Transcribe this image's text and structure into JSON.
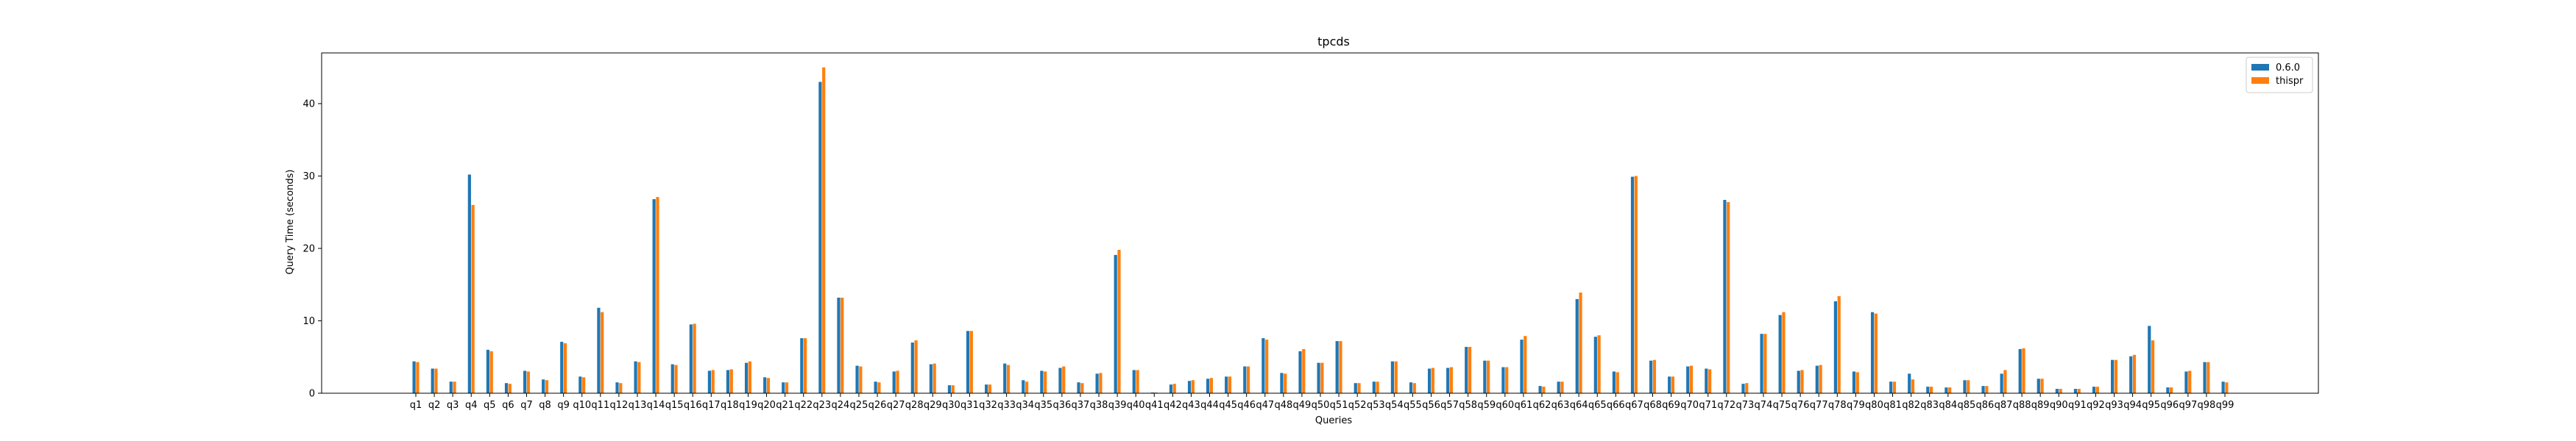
{
  "chart_data": {
    "type": "bar",
    "title": "tpcds",
    "xlabel": "Queries",
    "ylabel": "Query Time (seconds)",
    "ylim": [
      0,
      47
    ],
    "yticks": [
      0,
      10,
      20,
      30,
      40
    ],
    "grid": false,
    "legend_position": "top-right",
    "categories": [
      "q1",
      "q2",
      "q3",
      "q4",
      "q5",
      "q6",
      "q7",
      "q8",
      "q9",
      "q10",
      "q11",
      "q12",
      "q13",
      "q14",
      "q15",
      "q16",
      "q17",
      "q18",
      "q19",
      "q20",
      "q21",
      "q22",
      "q23",
      "q24",
      "q25",
      "q26",
      "q27",
      "q28",
      "q29",
      "q30",
      "q31",
      "q32",
      "q33",
      "q34",
      "q35",
      "q36",
      "q37",
      "q38",
      "q39",
      "q40",
      "q41",
      "q42",
      "q43",
      "q44",
      "q45",
      "q46",
      "q47",
      "q48",
      "q49",
      "q50",
      "q51",
      "q52",
      "q53",
      "q54",
      "q55",
      "q56",
      "q57",
      "q58",
      "q59",
      "q60",
      "q61",
      "q62",
      "q63",
      "q64",
      "q65",
      "q66",
      "q67",
      "q68",
      "q69",
      "q70",
      "q71",
      "q72",
      "q73",
      "q74",
      "q75",
      "q76",
      "q77",
      "q78",
      "q79",
      "q80",
      "q81",
      "q82",
      "q83",
      "q84",
      "q85",
      "q86",
      "q87",
      "q88",
      "q89",
      "q90",
      "q91",
      "q92",
      "q93",
      "q94",
      "q95",
      "q96",
      "q97",
      "q98",
      "q99"
    ],
    "series": [
      {
        "name": "0.6.0",
        "color": "#1f77b4",
        "values": [
          4.4,
          3.4,
          1.6,
          30.2,
          6.0,
          1.4,
          3.1,
          1.9,
          7.1,
          2.3,
          11.8,
          1.5,
          4.4,
          26.8,
          4.0,
          9.5,
          3.1,
          3.2,
          4.2,
          2.2,
          1.5,
          7.6,
          43.0,
          13.2,
          3.8,
          1.6,
          3.0,
          7.0,
          4.0,
          1.1,
          8.6,
          1.2,
          4.1,
          1.8,
          3.1,
          3.5,
          1.5,
          2.7,
          19.1,
          3.2,
          0.1,
          1.2,
          1.7,
          2.0,
          2.3,
          3.7,
          7.6,
          2.8,
          5.8,
          4.2,
          7.2,
          1.4,
          1.6,
          4.4,
          1.5,
          3.4,
          3.5,
          6.4,
          4.5,
          3.6,
          7.4,
          1.0,
          1.6,
          13.0,
          7.8,
          3.0,
          29.9,
          4.5,
          2.3,
          3.7,
          3.4,
          26.7,
          1.3,
          8.2,
          10.8,
          3.1,
          3.8,
          12.7,
          3.0,
          11.2,
          1.6,
          2.7,
          0.9,
          0.8,
          1.8,
          1.0,
          2.7,
          6.1,
          2.0,
          0.6,
          0.6,
          0.9,
          4.6,
          5.1,
          9.3,
          0.8,
          3.0,
          4.3,
          1.6
        ]
      },
      {
        "name": "thispr",
        "color": "#ff7f0e",
        "values": [
          4.3,
          3.4,
          1.6,
          26.0,
          5.8,
          1.3,
          3.0,
          1.8,
          6.9,
          2.2,
          11.2,
          1.4,
          4.3,
          27.1,
          3.9,
          9.6,
          3.2,
          3.3,
          4.4,
          2.1,
          1.5,
          7.6,
          45.0,
          13.2,
          3.7,
          1.5,
          3.1,
          7.3,
          4.1,
          1.1,
          8.6,
          1.2,
          3.9,
          1.6,
          3.0,
          3.7,
          1.4,
          2.8,
          19.8,
          3.2,
          0.1,
          1.3,
          1.8,
          2.1,
          2.3,
          3.7,
          7.4,
          2.7,
          6.1,
          4.2,
          7.2,
          1.4,
          1.6,
          4.4,
          1.4,
          3.5,
          3.6,
          6.4,
          4.5,
          3.6,
          7.9,
          0.9,
          1.6,
          13.9,
          8.0,
          2.9,
          30.0,
          4.6,
          2.3,
          3.8,
          3.3,
          26.4,
          1.4,
          8.2,
          11.2,
          3.2,
          3.9,
          13.4,
          2.9,
          11.0,
          1.6,
          1.9,
          0.9,
          0.8,
          1.8,
          1.0,
          3.2,
          6.2,
          2.0,
          0.6,
          0.6,
          0.9,
          4.6,
          5.3,
          7.3,
          0.8,
          3.1,
          4.3,
          1.5
        ]
      }
    ]
  }
}
